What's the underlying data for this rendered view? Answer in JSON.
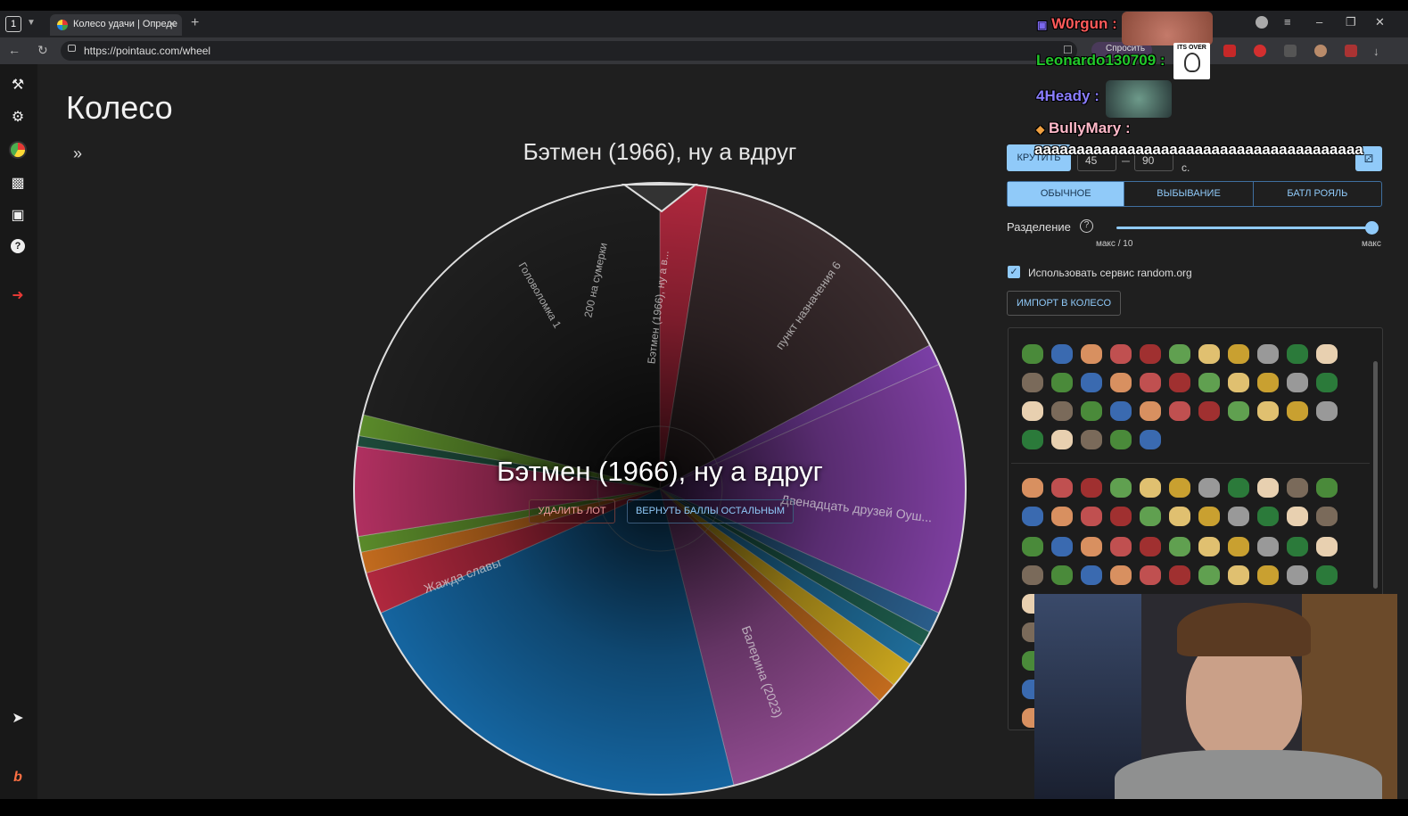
{
  "browser": {
    "tab_count": "1",
    "tab_title": "Колесо удачи | Опреде",
    "url": "https://pointauc.com/wheel",
    "ask_label": "Спросить"
  },
  "page": {
    "title": "Колесо",
    "wheel_title": "Бэтмен (1966), ну а вдруг",
    "winner": "Бэтмен (1966), ну а вдруг",
    "delete_lot": "УДАЛИТЬ ЛОТ",
    "return_points": "ВЕРНУТЬ БАЛЛЫ ОСТАЛЬНЫМ"
  },
  "wheel_slices": [
    {
      "label": "Бэтмен (1966), ну а в...",
      "color": "#b0283e"
    },
    {
      "label": "пункт назначения 6",
      "color": "#3a2c2e"
    },
    {
      "label": "",
      "color": "#7b3fa6"
    },
    {
      "label": "Двенадцать друзей Оуш...",
      "color": "#7e3fa0"
    },
    {
      "label": "",
      "color": "#2a5d8a"
    },
    {
      "label": "",
      "color": "#1d5a4a"
    },
    {
      "label": "",
      "color": "#1f6d9a"
    },
    {
      "label": "",
      "color": "#c9a51e"
    },
    {
      "label": "",
      "color": "#c26b1e"
    },
    {
      "label": "Балерина (2023)",
      "color": "#8e4a8e"
    },
    {
      "label": "Жажда славы",
      "color": "#1565a0"
    },
    {
      "label": "Головоломка 1",
      "color": "#b0283e"
    },
    {
      "label": "",
      "color": "#c26b1e"
    },
    {
      "label": "",
      "color": "#5a8a2a"
    },
    {
      "label": "200 на сумерки",
      "color": "#b03060"
    },
    {
      "label": "",
      "color": "#1d4a3a"
    },
    {
      "label": "",
      "color": "#5a8a2a"
    }
  ],
  "panel": {
    "spin_label": "КРУТИТЬ",
    "range_from": "45",
    "range_to": "90",
    "range_unit": "с.",
    "modes": [
      "ОБЫЧНОЕ",
      "ВЫБЫВАНИЕ",
      "БАТЛ РОЯЛЬ"
    ],
    "active_mode": "ОБЫЧНОЕ",
    "split_label": "Разделение",
    "split_min": "макс / 10",
    "split_max": "макс",
    "split_value": 1.0,
    "randomorg_label": "Использовать сервис random.org",
    "randomorg_checked": true,
    "import_label": "ИМПОРТ В КОЛЕСО"
  },
  "chat": [
    {
      "user": "W0rgun :",
      "color": "#ff5a5a",
      "message": ""
    },
    {
      "user": "Leonardo130709 :",
      "color": "#22c92a",
      "message": ""
    },
    {
      "user": "4Heady :",
      "color": "#8a7dff",
      "message": ""
    },
    {
      "user": "BullyMary :",
      "color": "#ffb9c9",
      "message": "ааааааааааааааааааааааааааааааааааааааа"
    }
  ],
  "overlay_text": {
    "its_over": "ITS OVER"
  }
}
